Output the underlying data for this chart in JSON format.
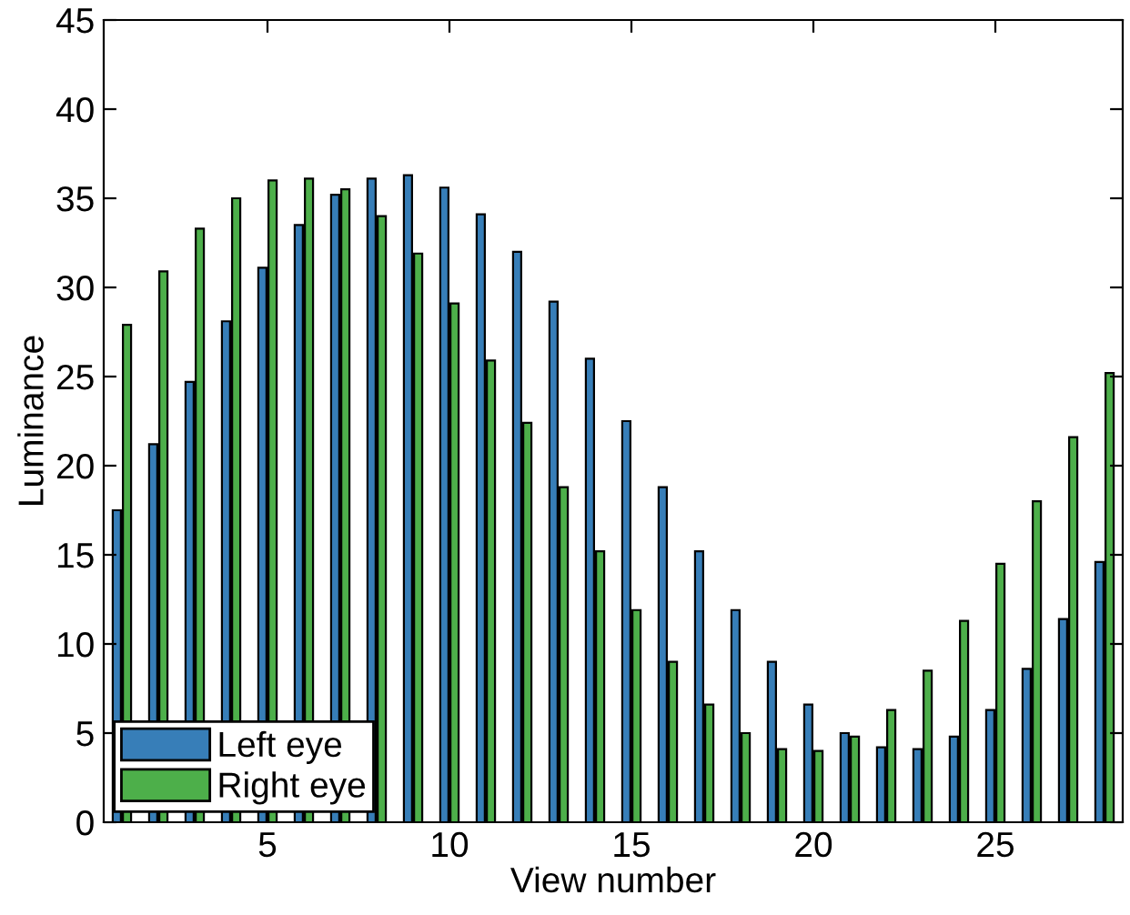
{
  "chart_data": {
    "type": "bar",
    "xlabel": "View number",
    "ylabel": "Luminance",
    "x": [
      1,
      2,
      3,
      4,
      5,
      6,
      7,
      8,
      9,
      10,
      11,
      12,
      13,
      14,
      15,
      16,
      17,
      18,
      19,
      20,
      21,
      22,
      23,
      24,
      25,
      26,
      27,
      28
    ],
    "series": [
      {
        "name": "Left eye",
        "color": "#377eb8",
        "values": [
          17.5,
          21.2,
          24.7,
          28.1,
          31.1,
          33.5,
          35.2,
          36.1,
          36.3,
          35.6,
          34.1,
          32.0,
          29.2,
          26.0,
          22.5,
          18.8,
          15.2,
          11.9,
          9.0,
          6.6,
          5.0,
          4.2,
          4.1,
          4.8,
          6.3,
          8.6,
          11.4,
          14.6
        ]
      },
      {
        "name": "Right eye",
        "color": "#4daf4a",
        "values": [
          27.9,
          30.9,
          33.3,
          35.0,
          36.0,
          36.1,
          35.5,
          34.0,
          31.9,
          29.1,
          25.9,
          22.4,
          18.8,
          15.2,
          11.9,
          9.0,
          6.6,
          5.0,
          4.1,
          4.0,
          4.8,
          6.3,
          8.5,
          11.3,
          14.5,
          18.0,
          21.6,
          25.2
        ]
      }
    ],
    "xlim": [
      0.5,
      28.5
    ],
    "xticks": [
      5,
      10,
      15,
      20,
      25
    ],
    "ylim": [
      0,
      45
    ],
    "yticks": [
      0,
      5,
      10,
      15,
      20,
      25,
      30,
      35,
      40,
      45
    ],
    "grid": false,
    "legend": "bottom left"
  }
}
